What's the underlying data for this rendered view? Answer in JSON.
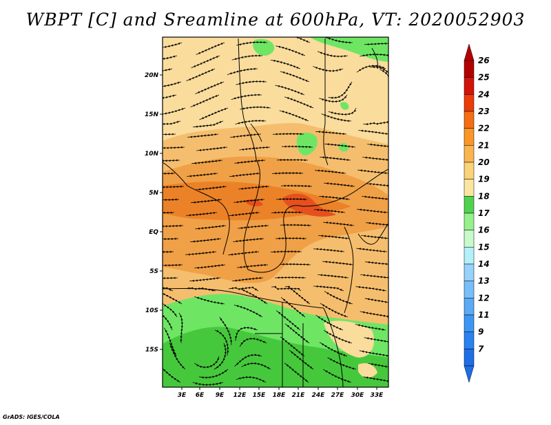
{
  "title": "WBPT [C] and Sreamline at 600hPa, VT: 2020052903",
  "credit": "GrADS: IGES/COLA",
  "map": {
    "lat_ticks": [
      "20N",
      "15N",
      "10N",
      "5N",
      "EQ",
      "5S",
      "10S",
      "15S"
    ],
    "lon_ticks": [
      "3E",
      "6E",
      "9E",
      "12E",
      "15E",
      "18E",
      "21E",
      "24E",
      "27E",
      "30E",
      "33E"
    ],
    "lat_range": [
      -20,
      25
    ],
    "lon_range": [
      0,
      35
    ],
    "variable": "Wet-bulb potential temperature (C) with 600hPa streamlines"
  },
  "colorbar": {
    "levels": [
      "7",
      "9",
      "11",
      "12",
      "13",
      "14",
      "15",
      "16",
      "17",
      "18",
      "19",
      "20",
      "21",
      "22",
      "23",
      "24",
      "25",
      "26"
    ],
    "colors": [
      "#1e6ee6",
      "#2882f0",
      "#3c96f5",
      "#5aaaf5",
      "#78befa",
      "#96d2fa",
      "#b4f0fa",
      "#c8facc",
      "#96f08c",
      "#50d250",
      "#fae6a0",
      "#fad278",
      "#fab450",
      "#fa9628",
      "#f56e14",
      "#eb3c0a",
      "#d2140a",
      "#b40000"
    ]
  },
  "colors": {
    "green": "#6ee664",
    "dark_green": "#46c83c",
    "yellow": "#fadc9c",
    "light_orange": "#f5be6e",
    "orange": "#f0a046",
    "deep_orange": "#eb8228",
    "red": "#e6501e"
  }
}
